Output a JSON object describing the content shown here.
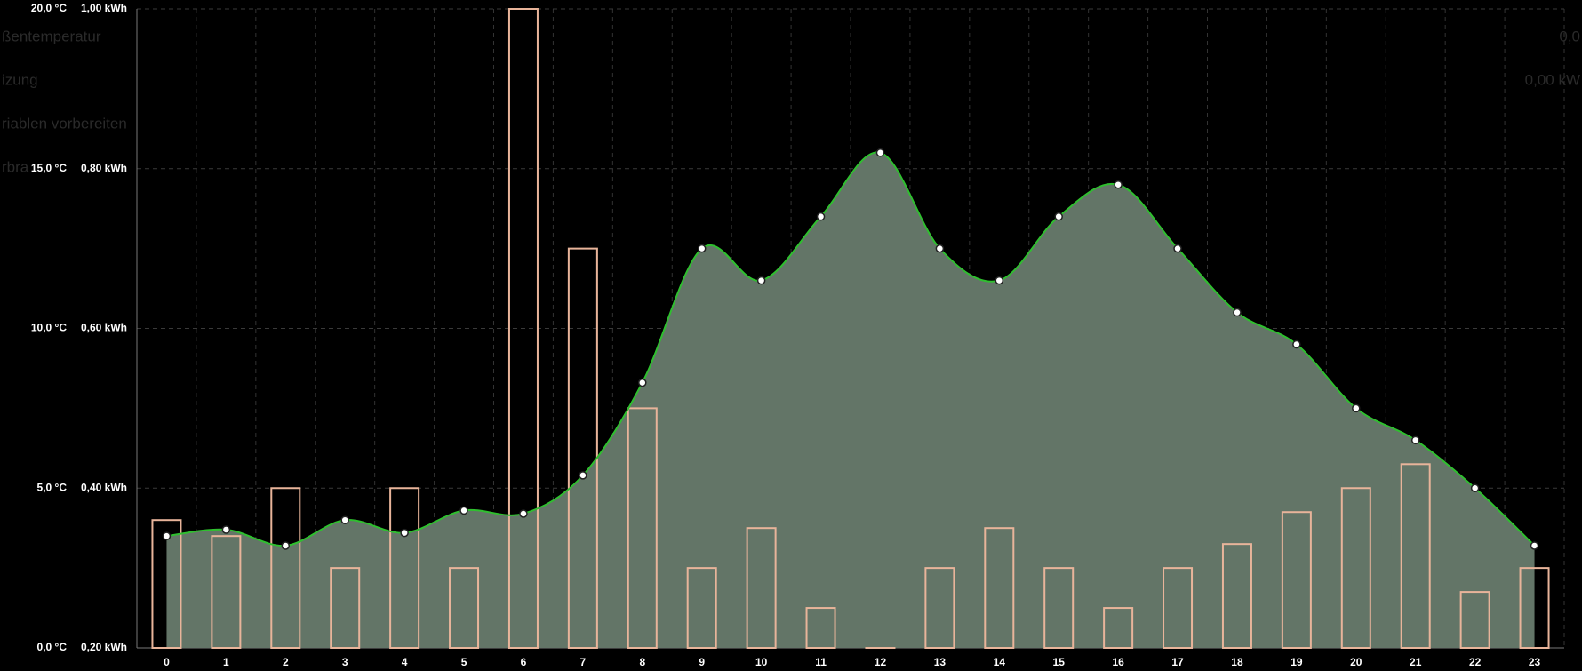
{
  "chart_data": {
    "type": "combo",
    "categories": [
      "0",
      "1",
      "2",
      "3",
      "4",
      "5",
      "6",
      "7",
      "8",
      "9",
      "10",
      "11",
      "12",
      "13",
      "14",
      "15",
      "16",
      "17",
      "18",
      "19",
      "20",
      "21",
      "22",
      "23"
    ],
    "series": [
      {
        "type": "bar",
        "axis": "y2",
        "color": "#e8b49a",
        "values": [
          0.36,
          0.34,
          0.4,
          0.3,
          0.4,
          0.3,
          1.0,
          0.7,
          0.5,
          0.3,
          0.35,
          0.25,
          0.2,
          0.3,
          0.35,
          0.3,
          0.25,
          0.3,
          0.33,
          0.37,
          0.4,
          0.43,
          0.27,
          0.3
        ]
      },
      {
        "type": "line",
        "axis": "y",
        "color": "#2fbf2f",
        "fill": "#637567",
        "values": [
          3.5,
          3.7,
          3.2,
          4.0,
          3.6,
          4.3,
          4.2,
          5.4,
          8.3,
          12.5,
          11.5,
          13.5,
          15.5,
          12.5,
          11.5,
          13.5,
          14.5,
          12.5,
          10.5,
          9.5,
          7.5,
          6.5,
          5.0,
          3.2
        ]
      }
    ],
    "ylim": [
      0,
      20
    ],
    "yticks": [
      {
        "value": 0,
        "label": "0,0 °C"
      },
      {
        "value": 5,
        "label": "5,0 °C"
      },
      {
        "value": 10,
        "label": "10,0 °C"
      },
      {
        "value": 15,
        "label": "15,0 °C"
      },
      {
        "value": 20,
        "label": "20,0 °C"
      }
    ],
    "y2lim": [
      0.2,
      1.0
    ],
    "y2ticks": [
      {
        "value": 0.2,
        "label": "0,20 kWh"
      },
      {
        "value": 0.4,
        "label": "0,40 kWh"
      },
      {
        "value": 0.6,
        "label": "0,60 kWh"
      },
      {
        "value": 0.8,
        "label": "0,80 kWh"
      },
      {
        "value": 1.0,
        "label": "1,00 kWh"
      }
    ],
    "grid": true,
    "annotations": [
      "ßentemperatur",
      "izung",
      "riablen vorbereiten",
      "rbra",
      "0,0",
      "0,00 kW"
    ]
  }
}
